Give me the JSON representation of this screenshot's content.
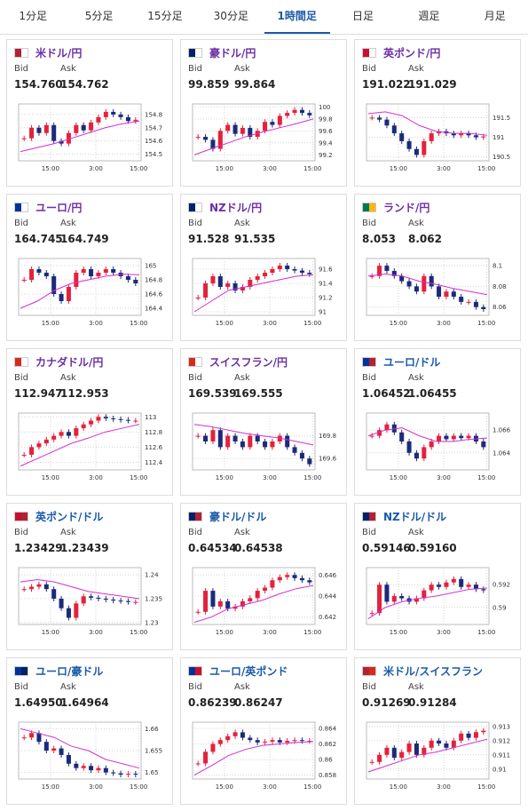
{
  "tabs": [
    "1分足",
    "5分足",
    "15分足",
    "30分足",
    "1時間足",
    "日足",
    "週足",
    "月足"
  ],
  "active_tab": 4,
  "labels": {
    "bid": "Bid",
    "ask": "Ask"
  },
  "chart_style": {
    "up": "#e3223c",
    "down": "#1b2b7a",
    "ma": "#d22fd2",
    "grid": "#d4d4d4"
  },
  "cards": [
    {
      "name": "米ドル/円",
      "name_color": "#6b2fa3",
      "flag": [
        "#b22234",
        "#ffffff"
      ],
      "bid": "154.760",
      "ask": "154.762",
      "chart": {
        "ylim": [
          154.45,
          154.88
        ],
        "yticks": [
          154.5,
          154.6,
          154.7,
          154.8
        ],
        "xticks": [
          "15:00",
          "3:00",
          "15:00"
        ],
        "candles": [
          154.62,
          154.7,
          154.66,
          154.72,
          154.6,
          154.58,
          154.66,
          154.72,
          154.68,
          154.74,
          154.78,
          154.82,
          154.8,
          154.78,
          154.75,
          154.76
        ],
        "ma": [
          154.52,
          154.55,
          154.58,
          154.62,
          154.66,
          154.7,
          154.73,
          154.75
        ]
      }
    },
    {
      "name": "豪ドル/円",
      "name_color": "#6b2fa3",
      "flag": [
        "#012169",
        "#ffffff"
      ],
      "bid": "99.859",
      "ask": "99.864",
      "chart": {
        "ylim": [
          99.1,
          100.05
        ],
        "yticks": [
          99.2,
          99.4,
          99.6,
          99.8,
          100
        ],
        "xticks": [
          "15:00",
          "3:00",
          "15:00"
        ],
        "candles": [
          99.5,
          99.45,
          99.3,
          99.6,
          99.7,
          99.55,
          99.65,
          99.5,
          99.6,
          99.75,
          99.7,
          99.85,
          99.9,
          99.95,
          99.9,
          99.86
        ],
        "ma": [
          99.2,
          99.3,
          99.4,
          99.5,
          99.58,
          99.65,
          99.72,
          99.8
        ]
      }
    },
    {
      "name": "英ポンド/円",
      "name_color": "#6b2fa3",
      "flag": [
        "#c8102e",
        "#ffffff"
      ],
      "bid": "191.022",
      "ask": "191.029",
      "chart": {
        "ylim": [
          190.4,
          191.85
        ],
        "yticks": [
          190.5,
          191,
          191.5
        ],
        "xticks": [
          "15:00",
          "3:00",
          "15:00"
        ],
        "candles": [
          191.5,
          191.45,
          191.3,
          191.1,
          190.9,
          190.7,
          190.55,
          190.9,
          191.1,
          191.15,
          191.1,
          191.05,
          191.1,
          191.05,
          191.0,
          191.02
        ],
        "ma": [
          191.6,
          191.65,
          191.55,
          191.3,
          191.15,
          191.1,
          191.1,
          191.05
        ]
      }
    },
    {
      "name": "ユーロ/円",
      "name_color": "#6b2fa3",
      "flag": [
        "#003399",
        "#ffffff"
      ],
      "bid": "164.745",
      "ask": "164.749",
      "chart": {
        "ylim": [
          164.3,
          165.1
        ],
        "yticks": [
          164.4,
          164.6,
          164.8,
          165
        ],
        "xticks": [
          "15:00",
          "3:00",
          "15:00"
        ],
        "candles": [
          164.8,
          164.95,
          164.9,
          164.85,
          164.6,
          164.5,
          164.7,
          164.9,
          164.95,
          164.85,
          164.9,
          164.95,
          164.9,
          164.85,
          164.8,
          164.75
        ],
        "ma": [
          164.4,
          164.5,
          164.65,
          164.75,
          164.8,
          164.85,
          164.88,
          164.87
        ]
      }
    },
    {
      "name": "NZドル/円",
      "name_color": "#6b2fa3",
      "flag": [
        "#012169",
        "#ffffff"
      ],
      "bid": "91.528",
      "ask": "91.535",
      "chart": {
        "ylim": [
          90.95,
          91.75
        ],
        "yticks": [
          91,
          91.2,
          91.4,
          91.6
        ],
        "xticks": [
          "15:00",
          "3:00",
          "15:00"
        ],
        "candles": [
          91.2,
          91.4,
          91.5,
          91.35,
          91.4,
          91.3,
          91.35,
          91.45,
          91.5,
          91.55,
          91.6,
          91.65,
          91.6,
          91.58,
          91.55,
          91.53
        ],
        "ma": [
          91.0,
          91.15,
          91.3,
          91.35,
          91.4,
          91.45,
          91.5,
          91.52
        ]
      }
    },
    {
      "name": "ランド/円",
      "name_color": "#6b2fa3",
      "flag": [
        "#007a4d",
        "#ffb612"
      ],
      "bid": "8.053",
      "ask": "8.062",
      "chart": {
        "ylim": [
          8.052,
          8.107
        ],
        "yticks": [
          8.06,
          8.08,
          8.1
        ],
        "xticks": [
          "15:00",
          "3:00",
          "15:00"
        ],
        "candles": [
          8.09,
          8.1,
          8.095,
          8.09,
          8.085,
          8.08,
          8.075,
          8.09,
          8.08,
          8.07,
          8.075,
          8.07,
          8.065,
          8.065,
          8.06,
          8.058
        ],
        "ma": [
          8.09,
          8.092,
          8.09,
          8.085,
          8.082,
          8.078,
          8.075,
          8.072
        ]
      }
    },
    {
      "name": "カナダドル/円",
      "name_color": "#6b2fa3",
      "flag": [
        "#d52b1e",
        "#ffffff"
      ],
      "bid": "112.947",
      "ask": "112.953",
      "chart": {
        "ylim": [
          112.3,
          113.05
        ],
        "yticks": [
          112.4,
          112.6,
          112.8,
          113
        ],
        "xticks": [
          "15:00",
          "3:00",
          "15:00"
        ],
        "candles": [
          112.5,
          112.6,
          112.65,
          112.7,
          112.75,
          112.8,
          112.75,
          112.85,
          112.9,
          112.95,
          113.0,
          112.98,
          112.97,
          112.96,
          112.95,
          112.95
        ],
        "ma": [
          112.35,
          112.45,
          112.55,
          112.65,
          112.72,
          112.8,
          112.85,
          112.9
        ]
      }
    },
    {
      "name": "スイスフラン/円",
      "name_color": "#6b2fa3",
      "flag": [
        "#d52b1e",
        "#ffffff"
      ],
      "bid": "169.539",
      "ask": "169.555",
      "chart": {
        "ylim": [
          169.5,
          170
        ],
        "yticks": [
          169.6,
          169.8
        ],
        "xticks": [
          "15:00",
          "3:00",
          "15:00"
        ],
        "candles": [
          169.8,
          169.75,
          169.85,
          169.7,
          169.8,
          169.75,
          169.7,
          169.8,
          169.75,
          169.7,
          169.75,
          169.8,
          169.7,
          169.65,
          169.6,
          169.55
        ],
        "ma": [
          169.9,
          169.88,
          169.85,
          169.82,
          169.8,
          169.78,
          169.75,
          169.72
        ]
      }
    },
    {
      "name": "ユーロ/ドル",
      "name_color": "#1a5aa8",
      "flag": [
        "#003399",
        "#b22234"
      ],
      "bid": "1.06452",
      "ask": "1.06455",
      "chart": {
        "ylim": [
          1.0625,
          1.0675
        ],
        "yticks": [
          1.064,
          1.066
        ],
        "xticks": [
          "15:00",
          "3:00",
          "15:00"
        ],
        "candles": [
          1.0655,
          1.066,
          1.0665,
          1.0658,
          1.065,
          1.064,
          1.0635,
          1.0645,
          1.065,
          1.0655,
          1.0652,
          1.0655,
          1.0653,
          1.0655,
          1.065,
          1.0645
        ],
        "ma": [
          1.0655,
          1.066,
          1.0662,
          1.0655,
          1.065,
          1.065,
          1.0652,
          1.0653
        ]
      }
    },
    {
      "name": "英ポンド/ドル",
      "name_color": "#1a5aa8",
      "flag": [
        "#c8102e",
        "#b22234"
      ],
      "bid": "1.23429",
      "ask": "1.23439",
      "chart": {
        "ylim": [
          1.2296,
          1.2415
        ],
        "yticks": [
          1.23,
          1.235,
          1.24
        ],
        "xticks": [
          "15:00",
          "3:00",
          "15:00"
        ],
        "candles": [
          1.237,
          1.2375,
          1.238,
          1.237,
          1.235,
          1.233,
          1.231,
          1.234,
          1.2355,
          1.2352,
          1.235,
          1.2348,
          1.2346,
          1.2345,
          1.2343,
          1.2343
        ],
        "ma": [
          1.2385,
          1.239,
          1.2385,
          1.2375,
          1.2365,
          1.236,
          1.2355,
          1.235
        ]
      }
    },
    {
      "name": "豪ドル/ドル",
      "name_color": "#1a5aa8",
      "flag": [
        "#012169",
        "#b22234"
      ],
      "bid": "0.64534",
      "ask": "0.64538",
      "chart": {
        "ylim": [
          0.6413,
          0.6467
        ],
        "yticks": [
          0.642,
          0.644,
          0.646
        ],
        "xticks": [
          "15:00",
          "3:00",
          "15:00"
        ],
        "candles": [
          0.6425,
          0.6445,
          0.643,
          0.6435,
          0.6428,
          0.643,
          0.6435,
          0.6438,
          0.6445,
          0.6448,
          0.6455,
          0.6458,
          0.646,
          0.6457,
          0.6455,
          0.6453
        ],
        "ma": [
          0.6415,
          0.642,
          0.6428,
          0.6432,
          0.6436,
          0.6442,
          0.6447,
          0.645
        ]
      }
    },
    {
      "name": "NZドル/ドル",
      "name_color": "#1a5aa8",
      "flag": [
        "#012169",
        "#b22234"
      ],
      "bid": "0.59146",
      "ask": "0.59160",
      "chart": {
        "ylim": [
          0.5885,
          0.5935
        ],
        "yticks": [
          0.59,
          0.592
        ],
        "xticks": [
          "15:00",
          "3:00",
          "15:00"
        ],
        "candles": [
          0.5895,
          0.592,
          0.5905,
          0.591,
          0.5908,
          0.5905,
          0.5908,
          0.5915,
          0.592,
          0.5918,
          0.5922,
          0.5925,
          0.5918,
          0.592,
          0.5916,
          0.5915
        ],
        "ma": [
          0.589,
          0.59,
          0.5905,
          0.5908,
          0.591,
          0.5913,
          0.5916,
          0.5917
        ]
      }
    },
    {
      "name": "ユーロ/豪ドル",
      "name_color": "#1a5aa8",
      "flag": [
        "#003399",
        "#012169"
      ],
      "bid": "1.64950",
      "ask": "1.64964",
      "chart": {
        "ylim": [
          1.6485,
          1.6615
        ],
        "yticks": [
          1.65,
          1.655,
          1.66
        ],
        "xticks": [
          "15:00",
          "3:00",
          "15:00"
        ],
        "candles": [
          1.658,
          1.659,
          1.657,
          1.655,
          1.6555,
          1.654,
          1.652,
          1.651,
          1.6515,
          1.6505,
          1.651,
          1.65,
          1.6498,
          1.6495,
          1.6497,
          1.6495
        ],
        "ma": [
          1.66,
          1.659,
          1.658,
          1.656,
          1.655,
          1.653,
          1.652,
          1.651
        ]
      }
    },
    {
      "name": "ユーロ/英ポンド",
      "name_color": "#1a5aa8",
      "flag": [
        "#003399",
        "#c8102e"
      ],
      "bid": "0.86239",
      "ask": "0.86247",
      "chart": {
        "ylim": [
          0.8575,
          0.8648
        ],
        "yticks": [
          0.858,
          0.86,
          0.862,
          0.864
        ],
        "xticks": [
          "15:00",
          "3:00",
          "15:00"
        ],
        "candles": [
          0.8595,
          0.861,
          0.862,
          0.8625,
          0.863,
          0.8635,
          0.8628,
          0.8625,
          0.8622,
          0.8623,
          0.8625,
          0.8622,
          0.8624,
          0.8625,
          0.8624,
          0.8624
        ],
        "ma": [
          0.858,
          0.8592,
          0.8605,
          0.8613,
          0.8618,
          0.862,
          0.8622,
          0.8623
        ]
      }
    },
    {
      "name": "米ドル/スイスフラン",
      "name_color": "#1a5aa8",
      "flag": [
        "#b22234",
        "#d52b1e"
      ],
      "bid": "0.91269",
      "ask": "0.91284",
      "chart": {
        "ylim": [
          0.9093,
          0.9133
        ],
        "yticks": [
          0.91,
          0.911,
          0.912,
          0.913
        ],
        "xticks": [
          "15:00",
          "3:00",
          "15:00"
        ],
        "candles": [
          0.9105,
          0.911,
          0.9115,
          0.9108,
          0.9112,
          0.9118,
          0.911,
          0.9115,
          0.912,
          0.9118,
          0.9115,
          0.912,
          0.9125,
          0.9122,
          0.9126,
          0.9127
        ],
        "ma": [
          0.9098,
          0.9102,
          0.9106,
          0.911,
          0.9112,
          0.9115,
          0.9118,
          0.9121
        ]
      }
    }
  ]
}
